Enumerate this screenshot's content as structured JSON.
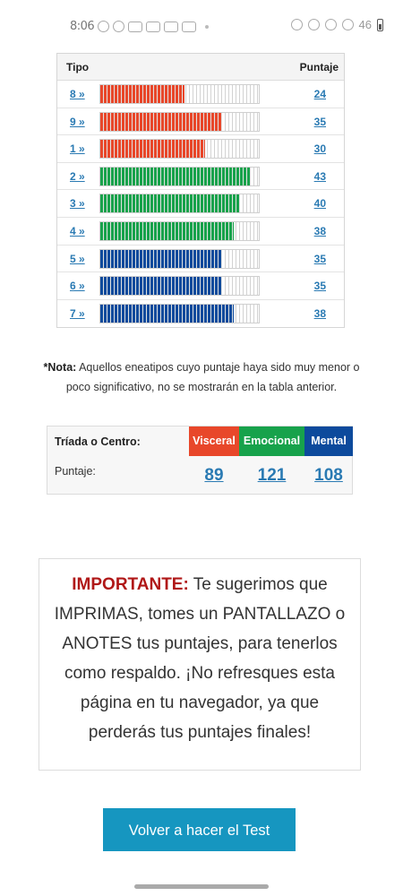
{
  "status_bar": {
    "time": "8:06",
    "right_text": "46"
  },
  "score_table": {
    "header_tipo": "Tipo",
    "header_puntaje": "Puntaje",
    "rows": [
      {
        "type": "8 »",
        "score": "24",
        "fill": 0.53,
        "color": "#e8472a"
      },
      {
        "type": "9 »",
        "score": "35",
        "fill": 0.77,
        "color": "#e8472a"
      },
      {
        "type": "1 »",
        "score": "30",
        "fill": 0.66,
        "color": "#e8472a"
      },
      {
        "type": "2 »",
        "score": "43",
        "fill": 0.95,
        "color": "#17a24b"
      },
      {
        "type": "3 »",
        "score": "40",
        "fill": 0.88,
        "color": "#17a24b"
      },
      {
        "type": "4 »",
        "score": "38",
        "fill": 0.84,
        "color": "#17a24b"
      },
      {
        "type": "5 »",
        "score": "35",
        "fill": 0.77,
        "color": "#0d4a9c"
      },
      {
        "type": "6 »",
        "score": "35",
        "fill": 0.77,
        "color": "#0d4a9c"
      },
      {
        "type": "7 »",
        "score": "38",
        "fill": 0.84,
        "color": "#0d4a9c"
      }
    ]
  },
  "note": {
    "bold": "*Nota:",
    "text": " Aquellos eneatipos cuyo puntaje haya sido muy menor o poco significativo, no se mostrarán en la tabla anterior."
  },
  "triad": {
    "label": "Tríada o Centro:",
    "score_label": "Puntaje:",
    "centers": [
      {
        "name": "Visceral",
        "value": "89",
        "color": "#e8472a"
      },
      {
        "name": "Emocional",
        "value": "121",
        "color": "#17a24b"
      },
      {
        "name": "Mental",
        "value": "108",
        "color": "#0d4a9c"
      }
    ]
  },
  "important": {
    "strong": "IMPORTANTE:",
    "text": " Te sugerimos que IMPRIMAS, tomes un PANTALLAZO o ANOTES tus puntajes, para tenerlos como respaldo. ¡No refresques esta página en tu navegador, ya que perderás tus puntajes finales!"
  },
  "button": {
    "label": "Volver a hacer el Test"
  }
}
